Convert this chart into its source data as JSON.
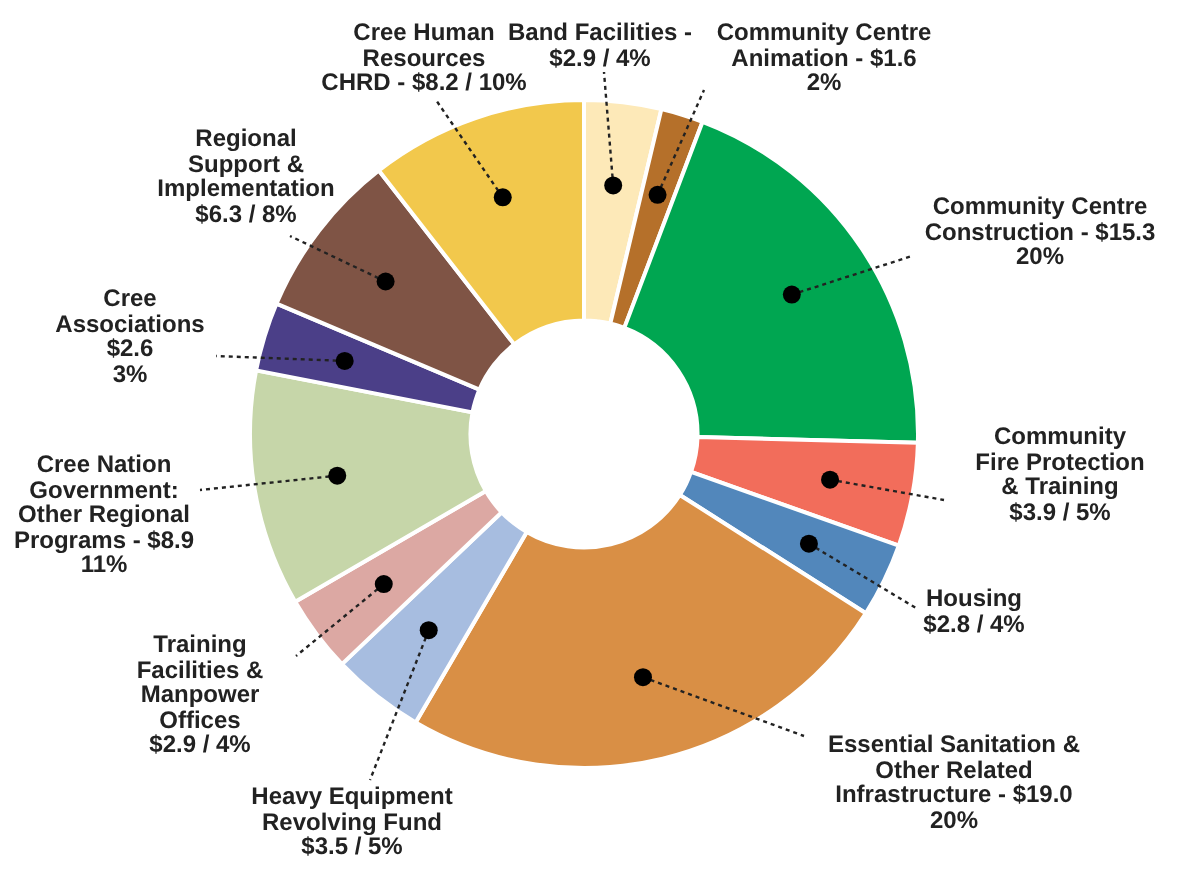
{
  "chart_data": {
    "type": "donut",
    "categories": [
      "Band Facilities -\n$2.9 / 4%",
      "Community Centre\nAnimation - $1.6\n2%",
      "Community Centre\nConstruction - $15.3\n20%",
      "Community\nFire Protection\n& Training\n$3.9 / 5%",
      "Housing\n$2.8 / 4%",
      "Essential Sanitation &\nOther Related\nInfrastructure - $19.0\n20%",
      "Heavy Equipment\nRevolving Fund\n$3.5 / 5%",
      "Training\nFacilities &\nManpower\nOffices\n$2.9 / 4%",
      "Cree Nation\nGovernment:\nOther Regional\nPrograms - $8.9\n11%",
      "Cree\nAssociations\n$2.6\n3%",
      "Regional\nSupport &\nImplementation\n$6.3 / 8%",
      "Cree Human\nResources\nCHRD - $8.2 / 10%"
    ],
    "values": [
      2.9,
      1.6,
      15.3,
      3.9,
      2.8,
      19.0,
      3.5,
      2.9,
      8.9,
      2.6,
      6.3,
      8.2
    ],
    "colors": [
      "#fde9b8",
      "#b5702a",
      "#00a651",
      "#f26d5b",
      "#5287bb",
      "#d98f45",
      "#a7bde0",
      "#dca8a3",
      "#c6d6a9",
      "#4b3f88",
      "#7f5445",
      "#f2c84c"
    ],
    "legend": false
  }
}
